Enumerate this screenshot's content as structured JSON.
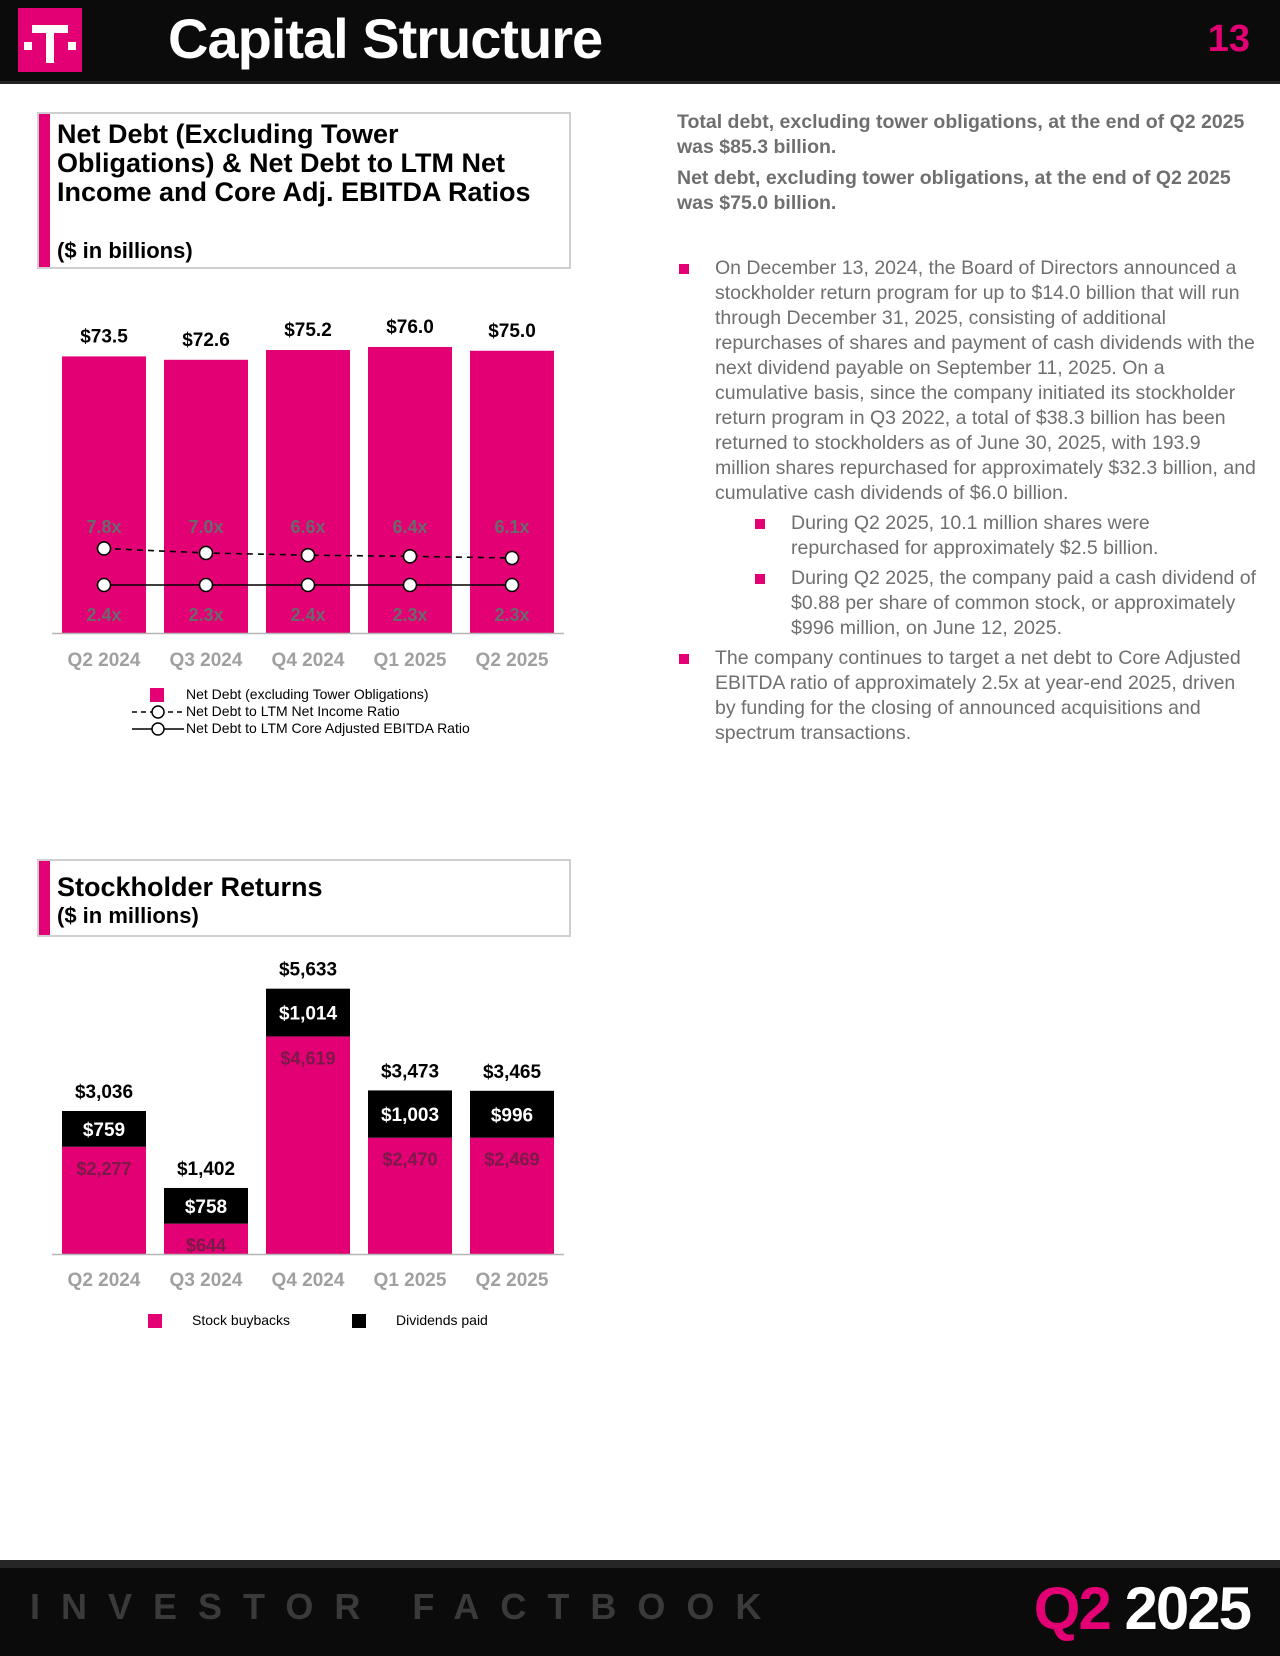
{
  "header": {
    "title": "Capital Structure",
    "page_number": "13"
  },
  "net_debt_section": {
    "title": "Net Debt (Excluding Tower Obligations) & Net Debt to LTM Net Income and Core Adj. EBITDA Ratios",
    "subtitle": "($ in billions)"
  },
  "stockholder_section": {
    "title": "Stockholder Returns",
    "subtitle": "($ in millions)"
  },
  "chart_data": [
    {
      "type": "bar",
      "categories": [
        "Q2 2024",
        "Q3 2024",
        "Q4 2024",
        "Q1 2025",
        "Q2 2025"
      ],
      "series": [
        {
          "name": "Net Debt (excluding Tower Obligations)",
          "type": "bar",
          "values": [
            73.5,
            72.6,
            75.2,
            76.0,
            75.0
          ],
          "labels": [
            "$73.5",
            "$72.6",
            "$75.2",
            "$76.0",
            "$75.0"
          ],
          "color": "#e20074"
        },
        {
          "name": "Net Debt to LTM Net Income Ratio",
          "type": "line",
          "style": "dashed",
          "values": [
            7.8,
            7.0,
            6.6,
            6.4,
            6.1
          ],
          "labels": [
            "7.8x",
            "7.0x",
            "6.6x",
            "6.4x",
            "6.1x"
          ]
        },
        {
          "name": "Net Debt to LTM Core Adjusted EBITDA Ratio",
          "type": "line",
          "style": "solid",
          "values": [
            2.4,
            2.3,
            2.4,
            2.3,
            2.3
          ],
          "labels": [
            "2.4x",
            "2.3x",
            "2.4x",
            "2.3x",
            "2.3x"
          ]
        }
      ],
      "legend": [
        "Net Debt (excluding Tower Obligations)",
        "Net Debt to LTM Net Income Ratio",
        "Net Debt to LTM Core Adjusted EBITDA Ratio"
      ],
      "legend_position": "bottom",
      "grid": false
    },
    {
      "type": "bar",
      "stacked": true,
      "categories": [
        "Q2 2024",
        "Q3 2024",
        "Q4 2024",
        "Q1 2025",
        "Q2 2025"
      ],
      "series": [
        {
          "name": "Stock buybacks",
          "values": [
            2277,
            644,
            4619,
            2470,
            2469
          ],
          "labels": [
            "$2,277",
            "$644",
            "$4,619",
            "$2,470",
            "$2,469"
          ],
          "color": "#e20074"
        },
        {
          "name": "Dividends paid",
          "values": [
            759,
            758,
            1014,
            1003,
            996
          ],
          "labels": [
            "$759",
            "$758",
            "$1,014",
            "$1,003",
            "$996"
          ],
          "color": "#000000"
        }
      ],
      "totals": [
        3036,
        1402,
        5633,
        3473,
        3465
      ],
      "total_labels": [
        "$3,036",
        "$1,402",
        "$5,633",
        "$3,473",
        "$3,465"
      ],
      "legend": [
        "Stock buybacks",
        "Dividends paid"
      ],
      "legend_position": "bottom",
      "grid": false
    }
  ],
  "summary": {
    "line1": "Total debt, excluding tower obligations, at the end of Q2 2025 was $85.3 billion.",
    "line2": "Net debt, excluding tower obligations, at the end of Q2 2025 was $75.0 billion."
  },
  "bullets": {
    "b1": "On December 13, 2024, the Board of Directors announced a stockholder return program for up to $14.0 billion that will run through December 31, 2025, consisting of additional repurchases of shares and payment of cash dividends with the next dividend payable on September 11, 2025. On a cumulative basis, since the company initiated its stockholder return program in Q3 2022, a total of $38.3 billion has been returned to stockholders as of June 30, 2025, with 193.9 million shares repurchased for approximately $32.3 billion, and cumulative cash dividends of $6.0 billion.",
    "b1a": "During Q2 2025, 10.1 million shares were repurchased for approximately $2.5 billion.",
    "b1b": "During Q2 2025, the company paid a cash dividend of $0.88 per share of common stock, or approximately $996 million, on June 12, 2025.",
    "b2": "The company continues to target a net debt to Core Adjusted EBITDA ratio of approximately 2.5x at year-end 2025, driven by funding for the closing of announced acquisitions and spectrum transactions."
  },
  "footer": {
    "label": "INVESTOR FACTBOOK",
    "quarter": "Q2",
    "year": "2025"
  },
  "colors": {
    "magenta": "#e20074",
    "black": "#000000",
    "gray_text": "#6f6f6f"
  },
  "icons": {
    "logo": "t-mobile-logo"
  }
}
